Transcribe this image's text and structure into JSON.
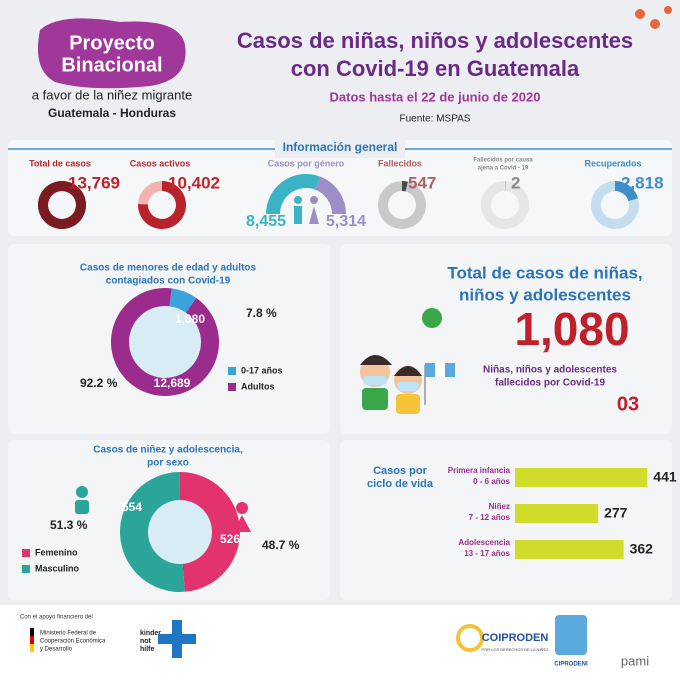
{
  "header": {
    "logo": [
      "Proyecto",
      "Binacional"
    ],
    "logo_sub": "a favor de la niñez migrante",
    "logo_countries": "Guatemala - Honduras",
    "title": [
      "Casos de niñas, niños y adolescentes",
      "con Covid-19 en Guatemala"
    ],
    "date": "Datos hasta el 22 de junio de 2020",
    "source": "Fuente: MSPAS"
  },
  "highlight": {
    "title": [
      "Total de casos de niñas,",
      "niños y adolescentes"
    ],
    "total": "1,080",
    "deaths_label": [
      "Niñas, niños y adolescentes",
      "fallecidos por Covid-19"
    ],
    "deaths": "03"
  },
  "footer": {
    "support": "Con el apoyo financiero del",
    "ministry": [
      "Ministerio Federal de",
      "Cooperación Económica",
      "y Desarrollo"
    ],
    "kinder": [
      "kinder",
      "not",
      "hilfe"
    ],
    "coiproden": "COIPRODEN",
    "coiproden_sub": "POR LOS DERECHOS DE LA NIÑEZ",
    "ciprodeni": "CIPRODENI",
    "pami": "pami"
  },
  "chart_data": [
    {
      "type": "kpi",
      "title": "Información general",
      "categories": [
        [
          "Total de casos"
        ],
        [
          "Casos activos"
        ],
        [
          "Fallecidos"
        ],
        [
          "Fallecidos por causa",
          "ajena a Covid - 19"
        ],
        [
          "Recuperados"
        ]
      ],
      "values": [
        13769,
        10402,
        547,
        2,
        2818
      ],
      "value_labels": [
        "13,769",
        "10,402",
        "547",
        "2",
        "2,818"
      ],
      "colors": [
        "#7a1b22",
        "#b8232b",
        "#4a4a4a",
        "#9a9a9a",
        "#3d8ecb"
      ],
      "track_colors": [
        "#7a1b22",
        "#f2b3b3",
        "#c9c9c9",
        "#e6e6e6",
        "#c4def0"
      ],
      "label_colors": [
        "#b8232b",
        "#c0272f",
        "#b06060",
        "#8a8a8a",
        "#3d8ecb"
      ]
    },
    {
      "type": "gauge",
      "title": "Casos por género",
      "values": [
        8455,
        5314
      ],
      "value_labels": [
        "8,455",
        "5,314"
      ],
      "colors": [
        "#3ab4c4",
        "#9d8fc6"
      ]
    },
    {
      "type": "donut",
      "title": [
        "Casos de menores de edad y adultos",
        "contagiados con Covid-19"
      ],
      "categories": [
        "0-17 años",
        "Adultos"
      ],
      "values": [
        1080,
        12689
      ],
      "value_labels": [
        "1,080",
        "12,689"
      ],
      "percents": [
        7.8,
        92.2
      ],
      "percent_labels": [
        "7.8 %",
        "92.2 %"
      ],
      "colors": [
        "#3aa3dc",
        "#9c2b8e"
      ]
    },
    {
      "type": "donut",
      "title": [
        "Casos de niñez y adolescencia,",
        "por sexo"
      ],
      "categories": [
        "Femenino",
        "Masculino"
      ],
      "values": [
        526,
        554
      ],
      "percents": [
        48.7,
        51.3
      ],
      "percent_labels": [
        "48.7 %",
        "51.3 %"
      ],
      "colors": [
        "#e2336e",
        "#2ba59a"
      ]
    },
    {
      "type": "hbar",
      "title": [
        "Casos por",
        "ciclo de vida"
      ],
      "categories": [
        [
          "Primera infancia",
          "0 - 6 años"
        ],
        [
          "Niñez",
          "7 - 12 años"
        ],
        [
          "Adolescencia",
          "13 - 17 años"
        ]
      ],
      "values": [
        441,
        277,
        362
      ],
      "color": "#cfdc2c"
    }
  ]
}
